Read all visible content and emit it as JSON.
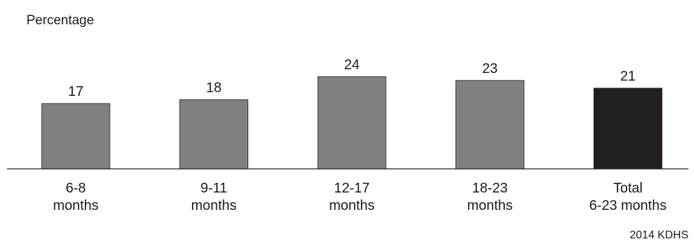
{
  "chart_data": {
    "type": "bar",
    "title": "",
    "ylabel": "Percentage",
    "xlabel": "",
    "categories": [
      [
        "6-8",
        "months"
      ],
      [
        "9-11",
        "months"
      ],
      [
        "12-17",
        "months"
      ],
      [
        "18-23",
        "months"
      ],
      [
        "Total",
        "6-23 months"
      ]
    ],
    "values": [
      17,
      18,
      24,
      23,
      21
    ],
    "highlight_index": 4,
    "ylim": [
      0,
      30
    ],
    "grid": false,
    "colors": {
      "bar": "#808185",
      "highlight": "#231f20",
      "axis": "#1a1a1a"
    }
  },
  "source": "2014 KDHS"
}
